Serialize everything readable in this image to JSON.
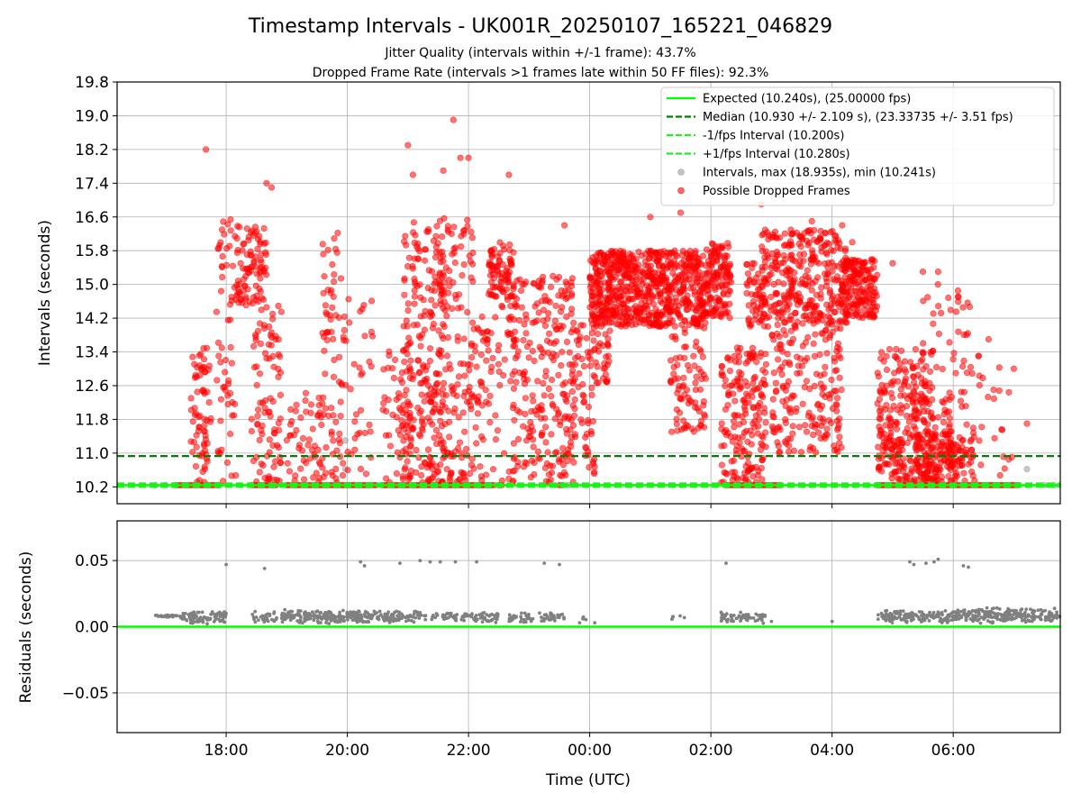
{
  "figure": {
    "title": "Timestamp Intervals - UK001R_20250107_165221_046829",
    "subtitle_line1": "Jitter Quality (intervals within +/-1 frame): 43.7%",
    "subtitle_line2": "Dropped Frame Rate (intervals >1 frames late within 50 FF files): 92.3%"
  },
  "chart_data": [
    {
      "type": "scatter",
      "panel": "top",
      "ylabel": "Intervals (seconds)",
      "xlabel": "",
      "x_axis": "time",
      "xlim": [
        "2025-01-07T16:12",
        "2025-01-08T07:46"
      ],
      "ylim": [
        9.8,
        19.8
      ],
      "yticks": [
        10.2,
        11.0,
        11.8,
        12.6,
        13.4,
        14.2,
        15.0,
        15.8,
        16.6,
        17.4,
        18.2,
        19.0,
        19.8
      ],
      "ytick_labels": [
        "10.2",
        "11.0",
        "11.8",
        "12.6",
        "13.4",
        "14.2",
        "15.0",
        "15.8",
        "16.6",
        "17.4",
        "18.2",
        "19.0",
        "19.8"
      ],
      "grid": true,
      "legend_position": "top-right",
      "reference_lines": [
        {
          "name": "Expected (10.240s), (25.00000 fps)",
          "y": 10.24,
          "color": "#00ff00",
          "style": "solid"
        },
        {
          "name": "Median (10.930 +/- 2.109 s), (23.33735 +/- 3.51 fps)",
          "y": 10.93,
          "color": "#008000",
          "style": "dashed"
        },
        {
          "name": "-1/fps Interval (10.200s)",
          "y": 10.2,
          "color": "#22ee22",
          "style": "dashed"
        },
        {
          "name": "+1/fps Interval (10.280s)",
          "y": 10.28,
          "color": "#22ee22",
          "style": "dashed"
        }
      ],
      "series": [
        {
          "name": "Intervals, max (18.935s), min (10.241s)",
          "color": "#999999",
          "points": [
            {
              "x": "2025-01-07T16:50",
              "y": 10.24
            },
            {
              "x": "2025-01-07T17:00",
              "y": 10.24
            },
            {
              "x": "2025-01-07T17:10",
              "y": 10.24
            },
            {
              "x": "2025-01-07T19:58",
              "y": 10.62
            },
            {
              "x": "2025-01-07T19:58",
              "y": 11.3
            },
            {
              "x": "2025-01-07T23:40",
              "y": 10.24
            },
            {
              "x": "2025-01-08T05:20",
              "y": 10.24
            },
            {
              "x": "2025-01-08T07:13",
              "y": 10.62
            },
            {
              "x": "2025-01-08T07:30",
              "y": 10.24
            },
            {
              "x": "2025-01-08T07:40",
              "y": 10.24
            }
          ]
        },
        {
          "name": "Possible Dropped Frames",
          "color": "#ff0000",
          "clusters": [
            {
              "x_from": "2025-01-07T17:25",
              "x_to": "2025-01-07T17:45",
              "y_low": 10.3,
              "y_high": 13.5,
              "count": 70
            },
            {
              "x_from": "2025-01-07T17:50",
              "x_to": "2025-01-07T18:10",
              "y_low": 10.3,
              "y_high": 16.6,
              "count": 60
            },
            {
              "x_from": "2025-01-07T18:10",
              "x_to": "2025-01-07T18:40",
              "y_low": 14.5,
              "y_high": 16.4,
              "count": 90
            },
            {
              "x_from": "2025-01-07T18:25",
              "x_to": "2025-01-07T18:55",
              "y_low": 10.3,
              "y_high": 14.5,
              "count": 90
            },
            {
              "x_from": "2025-01-07T19:00",
              "x_to": "2025-01-07T19:35",
              "y_low": 10.3,
              "y_high": 12.5,
              "count": 50
            },
            {
              "x_from": "2025-01-07T19:35",
              "x_to": "2025-01-07T19:55",
              "y_low": 10.3,
              "y_high": 16.5,
              "count": 70
            },
            {
              "x_from": "2025-01-07T19:55",
              "x_to": "2025-01-07T20:25",
              "y_low": 10.3,
              "y_high": 14.8,
              "count": 40
            },
            {
              "x_from": "2025-01-07T20:35",
              "x_to": "2025-01-07T21:05",
              "y_low": 10.3,
              "y_high": 13.5,
              "count": 50
            },
            {
              "x_from": "2025-01-07T20:55",
              "x_to": "2025-01-07T21:35",
              "y_low": 10.3,
              "y_high": 16.5,
              "count": 230
            },
            {
              "x_from": "2025-01-07T21:30",
              "x_to": "2025-01-07T22:05",
              "y_low": 10.3,
              "y_high": 16.6,
              "count": 150
            },
            {
              "x_from": "2025-01-07T22:05",
              "x_to": "2025-01-07T22:20",
              "y_low": 10.3,
              "y_high": 14.5,
              "count": 40
            },
            {
              "x_from": "2025-01-07T22:20",
              "x_to": "2025-01-07T22:45",
              "y_low": 14.6,
              "y_high": 16.0,
              "count": 80
            },
            {
              "x_from": "2025-01-07T22:20",
              "x_to": "2025-01-07T22:45",
              "y_low": 10.3,
              "y_high": 14.5,
              "count": 30
            },
            {
              "x_from": "2025-01-07T22:40",
              "x_to": "2025-01-07T23:45",
              "y_low": 10.3,
              "y_high": 15.2,
              "count": 260
            },
            {
              "x_from": "2025-01-07T23:45",
              "x_to": "2025-01-08T00:05",
              "y_low": 10.5,
              "y_high": 14.2,
              "count": 60
            },
            {
              "x_from": "2025-01-08T00:00",
              "x_to": "2025-01-08T01:55",
              "y_low": 14.0,
              "y_high": 15.8,
              "count": 700
            },
            {
              "x_from": "2025-01-08T00:05",
              "x_to": "2025-01-08T00:20",
              "y_low": 12.5,
              "y_high": 14.0,
              "count": 30
            },
            {
              "x_from": "2025-01-08T01:20",
              "x_to": "2025-01-08T01:55",
              "y_low": 11.5,
              "y_high": 14.0,
              "count": 80
            },
            {
              "x_from": "2025-01-08T01:55",
              "x_to": "2025-01-08T02:20",
              "y_low": 14.2,
              "y_high": 16.0,
              "count": 130
            },
            {
              "x_from": "2025-01-08T02:10",
              "x_to": "2025-01-08T02:25",
              "y_low": 10.3,
              "y_high": 13.5,
              "count": 50
            },
            {
              "x_from": "2025-01-08T02:25",
              "x_to": "2025-01-08T02:55",
              "y_low": 10.3,
              "y_high": 13.5,
              "count": 130
            },
            {
              "x_from": "2025-01-08T02:35",
              "x_to": "2025-01-08T02:50",
              "y_low": 14.0,
              "y_high": 15.5,
              "count": 40
            },
            {
              "x_from": "2025-01-08T02:50",
              "x_to": "2025-01-08T04:15",
              "y_low": 14.0,
              "y_high": 16.3,
              "count": 340
            },
            {
              "x_from": "2025-01-08T03:00",
              "x_to": "2025-01-08T04:10",
              "y_low": 11.0,
              "y_high": 14.0,
              "count": 180
            },
            {
              "x_from": "2025-01-08T04:10",
              "x_to": "2025-01-08T04:45",
              "y_low": 14.2,
              "y_high": 15.6,
              "count": 170
            },
            {
              "x_from": "2025-01-08T04:45",
              "x_to": "2025-01-08T05:40",
              "y_low": 10.3,
              "y_high": 13.5,
              "count": 260
            },
            {
              "x_from": "2025-01-08T05:20",
              "x_to": "2025-01-08T06:00",
              "y_low": 10.3,
              "y_high": 12.3,
              "count": 120
            },
            {
              "x_from": "2025-01-08T05:30",
              "x_to": "2025-01-08T06:20",
              "y_low": 12.3,
              "y_high": 15.0,
              "count": 40
            },
            {
              "x_from": "2025-01-08T06:00",
              "x_to": "2025-01-08T07:00",
              "y_low": 10.3,
              "y_high": 13.5,
              "count": 30
            },
            {
              "x_from": "2025-01-08T05:40",
              "x_to": "2025-01-08T06:20",
              "y_low": 10.3,
              "y_high": 11.5,
              "count": 80
            }
          ],
          "outliers": [
            {
              "x": "2025-01-07T17:40",
              "y": 18.2
            },
            {
              "x": "2025-01-07T18:40",
              "y": 17.4
            },
            {
              "x": "2025-01-07T18:45",
              "y": 17.3
            },
            {
              "x": "2025-01-07T21:00",
              "y": 18.3
            },
            {
              "x": "2025-01-07T21:05",
              "y": 17.6
            },
            {
              "x": "2025-01-07T21:45",
              "y": 18.9
            },
            {
              "x": "2025-01-07T22:00",
              "y": 18.0
            },
            {
              "x": "2025-01-07T21:52",
              "y": 18.0
            },
            {
              "x": "2025-01-07T21:35",
              "y": 17.7
            },
            {
              "x": "2025-01-07T22:40",
              "y": 17.6
            },
            {
              "x": "2025-01-07T23:35",
              "y": 16.4
            },
            {
              "x": "2025-01-08T01:00",
              "y": 16.6
            },
            {
              "x": "2025-01-08T01:30",
              "y": 16.7
            },
            {
              "x": "2025-01-08T02:50",
              "y": 16.9
            },
            {
              "x": "2025-01-08T03:40",
              "y": 16.5
            },
            {
              "x": "2025-01-08T04:10",
              "y": 16.4
            },
            {
              "x": "2025-01-08T04:20",
              "y": 16.0
            },
            {
              "x": "2025-01-08T05:00",
              "y": 15.5
            },
            {
              "x": "2025-01-08T05:30",
              "y": 15.3
            },
            {
              "x": "2025-01-08T05:45",
              "y": 15.3
            },
            {
              "x": "2025-01-08T06:05",
              "y": 14.7
            },
            {
              "x": "2025-01-08T06:35",
              "y": 13.7
            },
            {
              "x": "2025-01-08T06:40",
              "y": 12.5
            },
            {
              "x": "2025-01-08T07:00",
              "y": 13.0
            },
            {
              "x": "2025-01-08T07:13",
              "y": 11.7
            },
            {
              "x": "2025-01-08T06:25",
              "y": 13.3
            }
          ],
          "baseline": {
            "y": 10.24,
            "ranges": [
              [
                "2025-01-07T17:10",
                "2025-01-07T17:55"
              ],
              [
                "2025-01-07T18:25",
                "2025-01-07T18:50"
              ],
              [
                "2025-01-07T19:00",
                "2025-01-07T20:30"
              ],
              [
                "2025-01-07T20:35",
                "2025-01-07T22:25"
              ],
              [
                "2025-01-07T22:30",
                "2025-01-07T22:35"
              ],
              [
                "2025-01-07T23:30",
                "2025-01-07T23:35"
              ],
              [
                "2025-01-08T02:15",
                "2025-01-08T03:10"
              ],
              [
                "2025-01-08T04:45",
                "2025-01-08T07:05"
              ]
            ]
          }
        }
      ]
    },
    {
      "type": "scatter",
      "panel": "bottom",
      "ylabel": "Residuals (seconds)",
      "xlabel": "Time (UTC)",
      "x_axis": "time",
      "xlim": [
        "2025-01-07T16:12",
        "2025-01-08T07:46"
      ],
      "ylim": [
        -0.08,
        0.08
      ],
      "yticks": [
        -0.05,
        0.0,
        0.05
      ],
      "ytick_labels": [
        "−0.05",
        "0.00",
        "0.05"
      ],
      "xticks": [
        "2025-01-07T18:00",
        "2025-01-07T20:00",
        "2025-01-07T22:00",
        "2025-01-08T00:00",
        "2025-01-08T02:00",
        "2025-01-08T04:00",
        "2025-01-08T06:00"
      ],
      "xtick_labels": [
        "18:00",
        "20:00",
        "22:00",
        "00:00",
        "02:00",
        "04:00",
        "06:00"
      ],
      "grid": true,
      "reference_line": {
        "y": 0.0,
        "color": "#00ff00"
      },
      "series": [
        {
          "name": "",
          "color": "#808080",
          "bands": [
            {
              "x_from": "2025-01-07T16:50",
              "x_to": "2025-01-07T17:15",
              "y_low": 0.007,
              "y_high": 0.009,
              "count": 30
            },
            {
              "x_from": "2025-01-07T17:15",
              "x_to": "2025-01-07T18:00",
              "y_low": 0.002,
              "y_high": 0.012,
              "count": 90
            },
            {
              "x_from": "2025-01-07T18:25",
              "x_to": "2025-01-07T18:50",
              "y_low": 0.002,
              "y_high": 0.012,
              "count": 30
            },
            {
              "x_from": "2025-01-07T18:55",
              "x_to": "2025-01-07T19:45",
              "y_low": 0.002,
              "y_high": 0.013,
              "count": 120
            },
            {
              "x_from": "2025-01-07T19:45",
              "x_to": "2025-01-07T20:50",
              "y_low": 0.002,
              "y_high": 0.013,
              "count": 140
            },
            {
              "x_from": "2025-01-07T20:50",
              "x_to": "2025-01-07T21:55",
              "y_low": 0.003,
              "y_high": 0.012,
              "count": 70
            },
            {
              "x_from": "2025-01-07T21:55",
              "x_to": "2025-01-07T22:30",
              "y_low": 0.002,
              "y_high": 0.012,
              "count": 50
            },
            {
              "x_from": "2025-01-07T22:40",
              "x_to": "2025-01-07T23:05",
              "y_low": 0.003,
              "y_high": 0.011,
              "count": 35
            },
            {
              "x_from": "2025-01-07T23:10",
              "x_to": "2025-01-07T23:35",
              "y_low": 0.003,
              "y_high": 0.011,
              "count": 35
            },
            {
              "x_from": "2025-01-07T23:50",
              "x_to": "2025-01-08T00:00",
              "y_low": 0.004,
              "y_high": 0.009,
              "count": 4
            },
            {
              "x_from": "2025-01-08T01:20",
              "x_to": "2025-01-08T01:35",
              "y_low": 0.004,
              "y_high": 0.009,
              "count": 6
            },
            {
              "x_from": "2025-01-08T02:10",
              "x_to": "2025-01-08T02:55",
              "y_low": 0.002,
              "y_high": 0.012,
              "count": 60
            },
            {
              "x_from": "2025-01-08T04:45",
              "x_to": "2025-01-08T06:00",
              "y_low": 0.002,
              "y_high": 0.013,
              "count": 140
            },
            {
              "x_from": "2025-01-08T06:00",
              "x_to": "2025-01-08T07:46",
              "y_low": 0.002,
              "y_high": 0.015,
              "count": 240
            }
          ],
          "outliers": [
            {
              "x": "2025-01-07T18:00",
              "y": 0.047
            },
            {
              "x": "2025-01-07T18:38",
              "y": 0.044
            },
            {
              "x": "2025-01-07T20:13",
              "y": 0.049
            },
            {
              "x": "2025-01-07T20:17",
              "y": 0.046
            },
            {
              "x": "2025-01-07T20:52",
              "y": 0.048
            },
            {
              "x": "2025-01-07T21:12",
              "y": 0.05
            },
            {
              "x": "2025-01-07T21:22",
              "y": 0.049
            },
            {
              "x": "2025-01-07T21:32",
              "y": 0.049
            },
            {
              "x": "2025-01-07T21:47",
              "y": 0.049
            },
            {
              "x": "2025-01-07T22:08",
              "y": 0.049
            },
            {
              "x": "2025-01-07T23:15",
              "y": 0.048
            },
            {
              "x": "2025-01-07T23:30",
              "y": 0.047
            },
            {
              "x": "2025-01-08T02:15",
              "y": 0.048
            },
            {
              "x": "2025-01-08T05:17",
              "y": 0.049
            },
            {
              "x": "2025-01-08T05:21",
              "y": 0.047
            },
            {
              "x": "2025-01-08T05:33",
              "y": 0.048
            },
            {
              "x": "2025-01-08T05:41",
              "y": 0.049
            },
            {
              "x": "2025-01-08T05:45",
              "y": 0.051
            },
            {
              "x": "2025-01-08T06:10",
              "y": 0.046
            },
            {
              "x": "2025-01-08T06:15",
              "y": 0.045
            },
            {
              "x": "2025-01-07T23:50",
              "y": 0.003
            },
            {
              "x": "2025-01-08T00:05",
              "y": 0.003
            },
            {
              "x": "2025-01-08T03:00",
              "y": 0.004
            },
            {
              "x": "2025-01-08T04:00",
              "y": 0.004
            }
          ]
        }
      ]
    }
  ]
}
